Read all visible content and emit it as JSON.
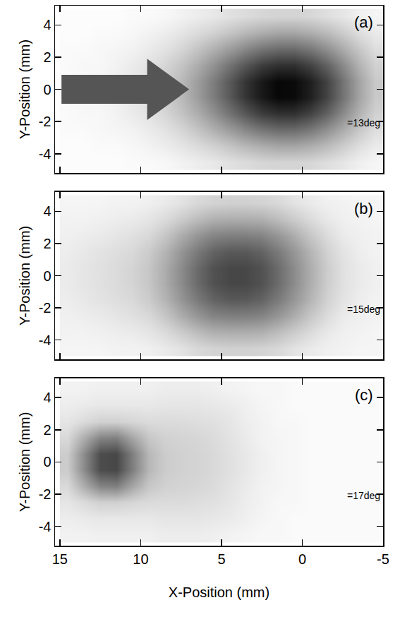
{
  "chart_data": [
    {
      "type": "heatmap",
      "title": "(a)",
      "annotations": [
        "=13deg"
      ],
      "y_label": "Y-Position (mm)",
      "tick_labels": "y",
      "xlim": [
        15.3,
        -5
      ],
      "ylim": [
        -5.2,
        5.2
      ],
      "xticks": [
        15,
        10,
        5,
        0,
        -5
      ],
      "yticks": [
        -4,
        -2,
        0,
        2,
        4
      ],
      "zlim": [
        0,
        100
      ],
      "x": [
        14.5,
        13.5,
        12.5,
        11.5,
        10.5,
        9.5,
        8.5,
        7.5,
        6.5,
        5.5,
        4.5,
        3.5,
        2.5,
        1.5,
        0.5,
        -0.5,
        -1.5,
        -2.5,
        -3.5,
        -4.5
      ],
      "y": [
        -4.5,
        -3.5,
        -2.5,
        -1.5,
        -0.5,
        0.5,
        1.5,
        2.5,
        3.5,
        4.5
      ],
      "z": [
        [
          1,
          1,
          1,
          1,
          2,
          2,
          3,
          5,
          7,
          9,
          12,
          14,
          16,
          17,
          17,
          16,
          13,
          10,
          6,
          4
        ],
        [
          1,
          1,
          2,
          2,
          3,
          5,
          7,
          10,
          14,
          18,
          23,
          28,
          32,
          35,
          35,
          32,
          27,
          20,
          13,
          8
        ],
        [
          2,
          2,
          3,
          4,
          5,
          8,
          11,
          16,
          23,
          31,
          39,
          47,
          54,
          58,
          58,
          53,
          44,
          33,
          22,
          13
        ],
        [
          2,
          3,
          3,
          5,
          8,
          11,
          16,
          23,
          32,
          43,
          55,
          66,
          76,
          81,
          81,
          74,
          62,
          46,
          30,
          18
        ],
        [
          2,
          3,
          4,
          6,
          9,
          13,
          19,
          27,
          38,
          51,
          65,
          79,
          90,
          97,
          96,
          88,
          74,
          55,
          36,
          21
        ],
        [
          2,
          3,
          4,
          6,
          9,
          13,
          19,
          27,
          38,
          51,
          65,
          79,
          90,
          97,
          96,
          88,
          74,
          55,
          36,
          21
        ],
        [
          2,
          3,
          3,
          5,
          8,
          11,
          16,
          23,
          32,
          43,
          55,
          66,
          76,
          81,
          81,
          74,
          62,
          46,
          30,
          18
        ],
        [
          2,
          2,
          3,
          4,
          5,
          8,
          11,
          16,
          23,
          31,
          39,
          47,
          54,
          58,
          58,
          53,
          44,
          33,
          22,
          13
        ],
        [
          1,
          1,
          2,
          2,
          3,
          5,
          7,
          10,
          14,
          18,
          23,
          28,
          32,
          35,
          35,
          32,
          27,
          20,
          13,
          8
        ],
        [
          1,
          1,
          1,
          1,
          2,
          2,
          3,
          5,
          7,
          9,
          12,
          14,
          16,
          17,
          17,
          16,
          13,
          10,
          6,
          4
        ]
      ]
    },
    {
      "type": "heatmap",
      "title": "(b)",
      "annotations": [
        "=15deg"
      ],
      "y_label": "Y-Position (mm)",
      "tick_labels": "y",
      "xlim": [
        15.3,
        -5
      ],
      "ylim": [
        -5.2,
        5.2
      ],
      "xticks": [
        15,
        10,
        5,
        0,
        -5
      ],
      "yticks": [
        -4,
        -2,
        0,
        2,
        4
      ],
      "zlim": [
        0,
        100
      ],
      "x": [
        14.5,
        13.5,
        12.5,
        11.5,
        10.5,
        9.5,
        8.5,
        7.5,
        6.5,
        5.5,
        4.5,
        3.5,
        2.5,
        1.5,
        0.5,
        -0.5,
        -1.5,
        -2.5,
        -3.5,
        -4.5
      ],
      "y": [
        -4.5,
        -3.5,
        -2.5,
        -1.5,
        -0.5,
        0.5,
        1.5,
        2.5,
        3.5,
        4.5
      ],
      "z": [
        [
          4,
          4,
          4,
          5,
          5,
          6,
          8,
          11,
          15,
          17,
          18,
          18,
          17,
          15,
          11,
          8,
          6,
          5,
          4,
          4
        ],
        [
          5,
          5,
          6,
          7,
          8,
          10,
          14,
          20,
          26,
          31,
          32,
          32,
          31,
          26,
          20,
          14,
          9,
          6,
          5,
          4
        ],
        [
          6,
          7,
          8,
          10,
          12,
          15,
          22,
          32,
          41,
          48,
          50,
          50,
          48,
          41,
          32,
          22,
          14,
          8,
          6,
          5
        ],
        [
          7,
          9,
          11,
          13,
          15,
          20,
          29,
          41,
          52,
          61,
          65,
          65,
          61,
          52,
          41,
          29,
          18,
          11,
          7,
          5
        ],
        [
          8,
          10,
          12,
          14,
          17,
          22,
          32,
          45,
          58,
          68,
          72,
          72,
          68,
          58,
          45,
          32,
          20,
          12,
          8,
          6
        ],
        [
          8,
          10,
          12,
          14,
          17,
          22,
          32,
          45,
          58,
          68,
          72,
          72,
          68,
          58,
          45,
          32,
          20,
          12,
          8,
          6
        ],
        [
          7,
          9,
          11,
          13,
          15,
          20,
          29,
          41,
          52,
          61,
          65,
          65,
          61,
          52,
          41,
          29,
          18,
          11,
          7,
          5
        ],
        [
          6,
          7,
          8,
          10,
          12,
          15,
          22,
          32,
          41,
          48,
          50,
          50,
          48,
          41,
          32,
          22,
          14,
          8,
          6,
          5
        ],
        [
          5,
          5,
          6,
          7,
          8,
          10,
          14,
          20,
          26,
          31,
          32,
          32,
          31,
          26,
          20,
          14,
          9,
          6,
          5,
          4
        ],
        [
          4,
          4,
          4,
          5,
          5,
          6,
          8,
          11,
          15,
          17,
          18,
          18,
          17,
          15,
          11,
          8,
          6,
          5,
          4,
          4
        ]
      ]
    },
    {
      "type": "heatmap",
      "title": "(c)",
      "annotations": [
        "=17deg"
      ],
      "y_label": "Y-Position (mm)",
      "x_label": "X-Position (mm)",
      "xlim": [
        15.3,
        -5
      ],
      "ylim": [
        -5.2,
        5.2
      ],
      "xticks": [
        15,
        10,
        5,
        0,
        -5
      ],
      "yticks": [
        -4,
        -2,
        0,
        2,
        4
      ],
      "zlim": [
        0,
        100
      ],
      "x": [
        14.5,
        13.5,
        12.5,
        11.5,
        10.5,
        9.5,
        8.5,
        7.5,
        6.5,
        5.5,
        4.5,
        3.5,
        2.5,
        1.5,
        0.5,
        -0.5,
        -1.5,
        -2.5,
        -3.5,
        -4.5
      ],
      "y": [
        -4.5,
        -3.5,
        -2.5,
        -1.5,
        -0.5,
        0.5,
        1.5,
        2.5,
        3.5,
        4.5
      ],
      "z": [
        [
          5,
          5,
          6,
          6,
          6,
          6,
          7,
          7,
          7,
          6,
          5,
          4,
          3,
          3,
          2,
          2,
          2,
          2,
          2,
          2
        ],
        [
          7,
          8,
          9,
          9,
          9,
          9,
          10,
          10,
          10,
          9,
          8,
          6,
          4,
          3,
          2,
          2,
          2,
          2,
          2,
          2
        ],
        [
          10,
          14,
          18,
          18,
          16,
          14,
          14,
          14,
          13,
          12,
          10,
          7,
          5,
          3,
          3,
          2,
          2,
          2,
          2,
          2
        ],
        [
          15,
          32,
          48,
          50,
          35,
          22,
          18,
          17,
          16,
          14,
          11,
          8,
          5,
          4,
          3,
          2,
          2,
          2,
          2,
          2
        ],
        [
          20,
          45,
          70,
          72,
          50,
          28,
          20,
          18,
          17,
          15,
          12,
          9,
          6,
          4,
          3,
          2,
          2,
          2,
          2,
          2
        ],
        [
          20,
          45,
          70,
          72,
          50,
          28,
          20,
          18,
          17,
          15,
          12,
          9,
          6,
          4,
          3,
          2,
          2,
          2,
          2,
          2
        ],
        [
          15,
          32,
          48,
          50,
          35,
          22,
          18,
          17,
          16,
          14,
          11,
          8,
          5,
          4,
          3,
          2,
          2,
          2,
          2,
          2
        ],
        [
          10,
          14,
          18,
          18,
          16,
          14,
          14,
          14,
          13,
          12,
          10,
          7,
          5,
          3,
          3,
          2,
          2,
          2,
          2,
          2
        ],
        [
          7,
          8,
          9,
          9,
          9,
          9,
          10,
          10,
          10,
          9,
          8,
          6,
          4,
          3,
          2,
          2,
          2,
          2,
          2,
          2
        ],
        [
          5,
          5,
          6,
          6,
          6,
          6,
          7,
          7,
          7,
          6,
          5,
          4,
          3,
          3,
          2,
          2,
          2,
          2,
          2,
          2
        ]
      ]
    }
  ]
}
